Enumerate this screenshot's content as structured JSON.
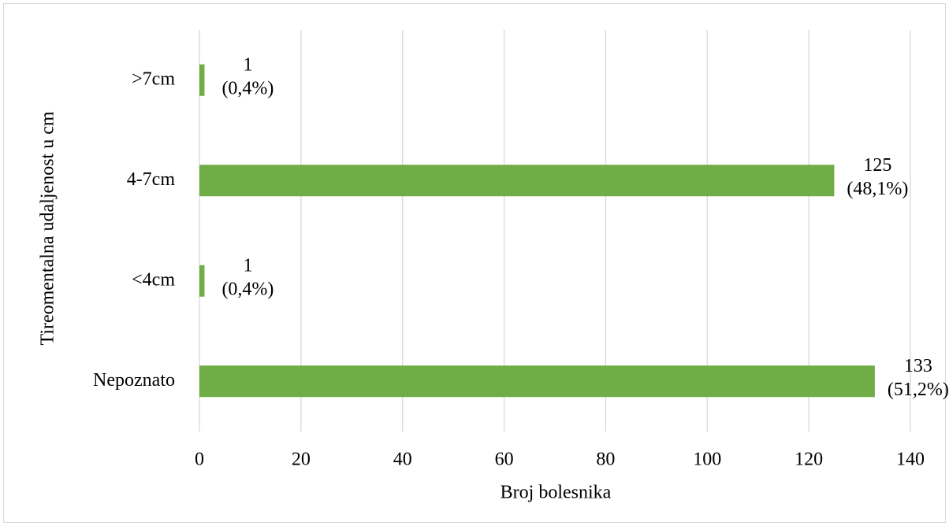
{
  "chart_data": {
    "type": "hbar",
    "y_label": "Tireomentalna udaljenost u cm",
    "x_label": "Broj bolesnika",
    "categories": [
      ">7cm",
      "4-7cm",
      "<4cm",
      "Nepoznato"
    ],
    "values": [
      1,
      125,
      1,
      133
    ],
    "value_labels": [
      [
        "1",
        "(0,4%)"
      ],
      [
        "125",
        "(48,1%)"
      ],
      [
        "1",
        "(0,4%)"
      ],
      [
        "133",
        "(51,2%)"
      ]
    ],
    "color": "#70ad47",
    "xlim": [
      0,
      140
    ],
    "xticks": [
      0,
      20,
      40,
      60,
      80,
      100,
      120,
      140
    ],
    "grid": true
  }
}
